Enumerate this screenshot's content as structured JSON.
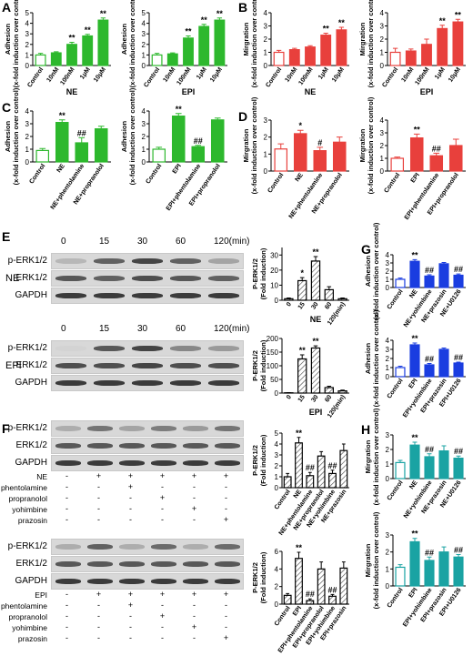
{
  "panel_labels": [
    "A",
    "B",
    "C",
    "D",
    "E",
    "F",
    "G",
    "H"
  ],
  "colors": {
    "green": "#2db82d",
    "red": "#e8403c",
    "blue": "#1a3de0",
    "teal": "#1aa3a3",
    "hatch": "#555555"
  },
  "chart_data": [
    {
      "id": "A1",
      "type": "bar",
      "color": "green",
      "categories": [
        "Control",
        "10nM",
        "100nM",
        "1μM",
        "10μM"
      ],
      "values": [
        1,
        1.2,
        2,
        2.8,
        4.3
      ],
      "errors": [
        0.15,
        0.1,
        0.2,
        0.15,
        0.2
      ],
      "sig": [
        "",
        "",
        "**",
        "**",
        "**"
      ],
      "ylabel": "Adhesion(x-fold induction over control)",
      "xlabel": "NE",
      "ylim": [
        0,
        5
      ],
      "yticks": [
        0,
        1,
        2,
        3,
        4,
        5
      ]
    },
    {
      "id": "A2",
      "type": "bar",
      "color": "green",
      "categories": [
        "Control",
        "10nM",
        "100nM",
        "1μM",
        "10μM"
      ],
      "values": [
        1,
        1.1,
        2.6,
        3.7,
        4.3
      ],
      "errors": [
        0.15,
        0.1,
        0.2,
        0.2,
        0.2
      ],
      "sig": [
        "",
        "",
        "**",
        "**",
        "**"
      ],
      "ylabel": "Adhesion(x-fold induction over control)",
      "xlabel": "EPI",
      "ylim": [
        0,
        5
      ],
      "yticks": [
        0,
        1,
        2,
        3,
        4,
        5
      ]
    },
    {
      "id": "B1",
      "type": "bar",
      "color": "red",
      "categories": [
        "Control",
        "10nM",
        "100nM",
        "1μM",
        "10μM"
      ],
      "values": [
        1,
        1.2,
        1.4,
        2.3,
        2.7
      ],
      "errors": [
        0.15,
        0.1,
        0.1,
        0.15,
        0.2
      ],
      "sig": [
        "",
        "",
        "",
        "**",
        "**"
      ],
      "ylabel": "Mirgration(x-fold induction over control)",
      "xlabel": "NE",
      "ylim": [
        0,
        4
      ],
      "yticks": [
        0,
        1,
        2,
        3,
        4
      ]
    },
    {
      "id": "B2",
      "type": "bar",
      "color": "red",
      "categories": [
        "Control",
        "10nM",
        "100nM",
        "1μM",
        "10μM"
      ],
      "values": [
        1,
        1.1,
        1.6,
        2.8,
        3.3
      ],
      "errors": [
        0.3,
        0.15,
        0.4,
        0.25,
        0.2
      ],
      "sig": [
        "",
        "",
        "",
        "**",
        "**"
      ],
      "ylabel": "Mirgration(x-fold induction over control)",
      "xlabel": "EPI",
      "ylim": [
        0,
        4
      ],
      "yticks": [
        0,
        1,
        2,
        3,
        4
      ]
    },
    {
      "id": "C1",
      "type": "bar",
      "color": "green",
      "categories": [
        "Control",
        "NE",
        "NE+phentolamine",
        "NE+propranolol"
      ],
      "values": [
        0.9,
        3.1,
        1.5,
        2.6
      ],
      "errors": [
        0.15,
        0.2,
        0.4,
        0.2
      ],
      "sig": [
        "",
        "**",
        "##",
        ""
      ],
      "ylabel": "Adhesion(x-fold induction over control)",
      "xlabel": "",
      "ylim": [
        0,
        4
      ],
      "yticks": [
        0,
        1,
        2,
        3,
        4
      ]
    },
    {
      "id": "C2",
      "type": "bar",
      "color": "green",
      "categories": [
        "Control",
        "EPI",
        "EPI+phentolamine",
        "EPI+propranolol"
      ],
      "values": [
        1,
        3.6,
        1.2,
        3.3
      ],
      "errors": [
        0.15,
        0.2,
        0.1,
        0.15
      ],
      "sig": [
        "",
        "**",
        "##",
        ""
      ],
      "ylabel": "Adhesion(x-fold induction over control)",
      "xlabel": "",
      "ylim": [
        0,
        4
      ],
      "yticks": [
        0,
        1,
        2,
        3,
        4
      ]
    },
    {
      "id": "D1",
      "type": "bar",
      "color": "red",
      "categories": [
        "Control",
        "NE",
        "NE+phentolamine",
        "NE+propranolol"
      ],
      "values": [
        1.3,
        2.2,
        1.2,
        1.7
      ],
      "errors": [
        0.3,
        0.2,
        0.2,
        0.3
      ],
      "sig": [
        "",
        "*",
        "#",
        ""
      ],
      "ylabel": "Mirgration(x-fold induction over control)",
      "xlabel": "",
      "ylim": [
        0,
        3
      ],
      "yticks": [
        0,
        1,
        2,
        3
      ]
    },
    {
      "id": "D2",
      "type": "bar",
      "color": "red",
      "categories": [
        "Control",
        "EPI",
        "EPI+phentolamine",
        "EPI+propranolol"
      ],
      "values": [
        1,
        2.6,
        1.2,
        2
      ],
      "errors": [
        0.1,
        0.3,
        0.2,
        0.5
      ],
      "sig": [
        "",
        "**",
        "##",
        ""
      ],
      "ylabel": "Mirgration(x-fold induction over control)",
      "xlabel": "",
      "ylim": [
        0,
        4
      ],
      "yticks": [
        0,
        1,
        2,
        3,
        4
      ]
    },
    {
      "id": "E1",
      "type": "bar",
      "color": "hatch",
      "categories": [
        "0",
        "15",
        "30",
        "60",
        "120(min)"
      ],
      "values": [
        1,
        13,
        26,
        7,
        1
      ],
      "errors": [
        0.5,
        2,
        3,
        2,
        0.5
      ],
      "sig": [
        "",
        "*",
        "**",
        "",
        ""
      ],
      "ylabel": "P-ERK1/2 (Fold induction)",
      "xlabel": "NE",
      "ylim": [
        0,
        35
      ],
      "yticks": [
        0,
        10,
        20,
        30
      ]
    },
    {
      "id": "E2",
      "type": "bar",
      "color": "hatch",
      "categories": [
        "0",
        "15",
        "30",
        "60",
        "120(min)"
      ],
      "values": [
        1,
        125,
        165,
        20,
        8
      ],
      "errors": [
        0.5,
        15,
        8,
        5,
        3
      ],
      "sig": [
        "",
        "**",
        "**",
        "",
        ""
      ],
      "ylabel": "P-ERK1/2 (Fold induction)",
      "xlabel": "EPI",
      "ylim": [
        0,
        200
      ],
      "yticks": [
        0,
        50,
        100,
        150,
        200
      ]
    },
    {
      "id": "F1",
      "type": "bar",
      "color": "hatch",
      "categories": [
        "Control",
        "NE",
        "NE+phentolamine",
        "NE+propranolol",
        "NE+yohimbine",
        "NE+prazosin"
      ],
      "values": [
        1,
        4.1,
        1.1,
        2.9,
        1.3,
        3.4
      ],
      "errors": [
        0.3,
        0.5,
        0.3,
        0.4,
        0.3,
        0.6
      ],
      "sig": [
        "",
        "**",
        "##",
        "",
        "##",
        ""
      ],
      "ylabel": "P-ERK1/2 (Fold induction)",
      "xlabel": "",
      "ylim": [
        0,
        5
      ],
      "yticks": [
        0,
        1,
        2,
        3,
        4,
        5
      ]
    },
    {
      "id": "F2",
      "type": "bar",
      "color": "hatch",
      "categories": [
        "Control",
        "EPI",
        "EPI+phentolamine",
        "EPI+propranolol",
        "EPI+yohimbine",
        "EPI+prazosin"
      ],
      "values": [
        1,
        5.2,
        0.4,
        4,
        0.9,
        4.1
      ],
      "errors": [
        0.2,
        0.7,
        0.2,
        0.8,
        0.2,
        0.7
      ],
      "sig": [
        "",
        "**",
        "##",
        "",
        "##",
        ""
      ],
      "ylabel": "P-ERK1/2 (Fold induction)",
      "xlabel": "",
      "ylim": [
        0,
        6
      ],
      "yticks": [
        0,
        2,
        4,
        6
      ]
    },
    {
      "id": "G1",
      "type": "bar",
      "color": "blue",
      "categories": [
        "Control",
        "NE",
        "NE+yohimbine",
        "NE+prazosin",
        "NE+U0126"
      ],
      "values": [
        1,
        3.2,
        1.4,
        2.9,
        1.5
      ],
      "errors": [
        0.15,
        0.2,
        0.15,
        0.15,
        0.15
      ],
      "sig": [
        "",
        "**",
        "##",
        "",
        "##"
      ],
      "ylabel": "Adhesion(x-fold induction over control)",
      "xlabel": "",
      "ylim": [
        0,
        4
      ],
      "yticks": [
        0,
        1,
        2,
        3,
        4
      ]
    },
    {
      "id": "G2",
      "type": "bar",
      "color": "blue",
      "categories": [
        "Control",
        "EPI",
        "EPI+yohimbine",
        "EPI+prazosin",
        "EPI+U0126"
      ],
      "values": [
        1,
        3.5,
        1.3,
        3,
        1.5
      ],
      "errors": [
        0.15,
        0.2,
        0.15,
        0.15,
        0.1
      ],
      "sig": [
        "",
        "**",
        "##",
        "",
        "##"
      ],
      "ylabel": "Adhesion(x-fold induction over control)",
      "xlabel": "",
      "ylim": [
        0,
        4
      ],
      "yticks": [
        0,
        1,
        2,
        3,
        4
      ]
    },
    {
      "id": "H1",
      "type": "bar",
      "color": "teal",
      "categories": [
        "Control",
        "NE",
        "NE+yohimbine",
        "NE+prazosin",
        "NE+U0126"
      ],
      "values": [
        1.1,
        2.3,
        1.5,
        1.9,
        1.4
      ],
      "errors": [
        0.15,
        0.2,
        0.2,
        0.35,
        0.15
      ],
      "sig": [
        "",
        "**",
        "##",
        "",
        "##"
      ],
      "ylabel": "Mirgration(x-fold induction over control)",
      "xlabel": "",
      "ylim": [
        0,
        3
      ],
      "yticks": [
        0,
        1,
        2,
        3
      ]
    },
    {
      "id": "H2",
      "type": "bar",
      "color": "teal",
      "categories": [
        "Control",
        "EPI",
        "EPI+yohimbine",
        "EPI+prazosin",
        "EPI+U0126"
      ],
      "values": [
        1.1,
        2.6,
        1.5,
        2,
        1.7
      ],
      "errors": [
        0.15,
        0.2,
        0.2,
        0.3,
        0.15
      ],
      "sig": [
        "",
        "**",
        "##",
        "",
        "##"
      ],
      "ylabel": "Mirgration(x-fold induction over control)",
      "xlabel": "",
      "ylim": [
        0,
        3
      ],
      "yticks": [
        0,
        1,
        2,
        3
      ]
    }
  ],
  "blots": {
    "timepoints": [
      "0",
      "15",
      "30",
      "60",
      "120(min)"
    ],
    "rows": [
      "p-ERK1/2",
      "ERK1/2",
      "GAPDH"
    ],
    "NE_label": "NE",
    "EPI_label": "EPI",
    "treatments": [
      "phentolamine",
      "propranolol",
      "yohimbine",
      "prazosin"
    ],
    "plus": "+",
    "minus": "-",
    "F1_agonist": "NE",
    "F2_agonist": "EPI",
    "agonist_row": [
      "-",
      "+",
      "+",
      "+",
      "+",
      "+"
    ],
    "treatment_rows": [
      [
        "-",
        "-",
        "+",
        "-",
        "-",
        "-"
      ],
      [
        "-",
        "-",
        "-",
        "+",
        "-",
        "-"
      ],
      [
        "-",
        "-",
        "-",
        "-",
        "+",
        "-"
      ],
      [
        "-",
        "-",
        "-",
        "-",
        "-",
        "+"
      ]
    ],
    "E1_intensity": {
      "p": [
        0.25,
        0.7,
        0.85,
        0.7,
        0.35
      ],
      "t": [
        0.75,
        0.7,
        0.8,
        0.75,
        0.7
      ],
      "g": [
        0.9,
        0.9,
        0.9,
        0.9,
        0.9
      ]
    },
    "E2_intensity": {
      "p": [
        0.1,
        0.75,
        0.85,
        0.5,
        0.4
      ],
      "t": [
        0.8,
        0.8,
        0.85,
        0.8,
        0.8
      ],
      "g": [
        0.9,
        0.9,
        0.9,
        0.9,
        0.9
      ]
    },
    "F1_intensity": {
      "p": [
        0.3,
        0.6,
        0.35,
        0.55,
        0.4,
        0.6
      ],
      "t": [
        0.75,
        0.75,
        0.75,
        0.75,
        0.75,
        0.75
      ],
      "g": [
        0.9,
        0.9,
        0.9,
        0.9,
        0.9,
        0.9
      ]
    },
    "F2_intensity": {
      "p": [
        0.3,
        0.7,
        0.3,
        0.65,
        0.3,
        0.65
      ],
      "t": [
        0.75,
        0.75,
        0.75,
        0.75,
        0.75,
        0.75
      ],
      "g": [
        0.9,
        0.9,
        0.9,
        0.9,
        0.9,
        0.9
      ]
    }
  }
}
